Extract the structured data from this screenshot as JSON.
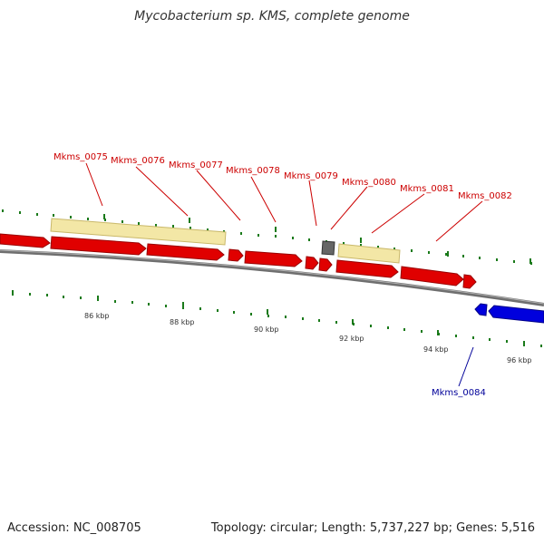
{
  "title": "Mycobacterium sp. KMS, complete genome",
  "footer": {
    "accession": "Accession: NC_008705",
    "summary": "Topology: circular; Length: 5,737,227 bp; Genes: 5,516"
  },
  "colors": {
    "forward_gene": "#e00000",
    "reverse_gene": "#0000dd",
    "cds_bar": "#f3e7a6",
    "backbone": "#7a7a7a",
    "tick": "#1a7a1a",
    "forward_label": "#cc0000",
    "reverse_label": "#000099"
  },
  "forward_gene_labels": [
    "Mkms_0075",
    "Mkms_0076",
    "Mkms_0077",
    "Mkms_0078",
    "Mkms_0079",
    "Mkms_0080",
    "Mkms_0081",
    "Mkms_0082"
  ],
  "reverse_gene_labels": [
    "Mkms_0084"
  ],
  "kbp_labels": [
    "86 kbp",
    "88 kbp",
    "90 kbp",
    "92 kbp",
    "94 kbp",
    "96 kbp"
  ]
}
